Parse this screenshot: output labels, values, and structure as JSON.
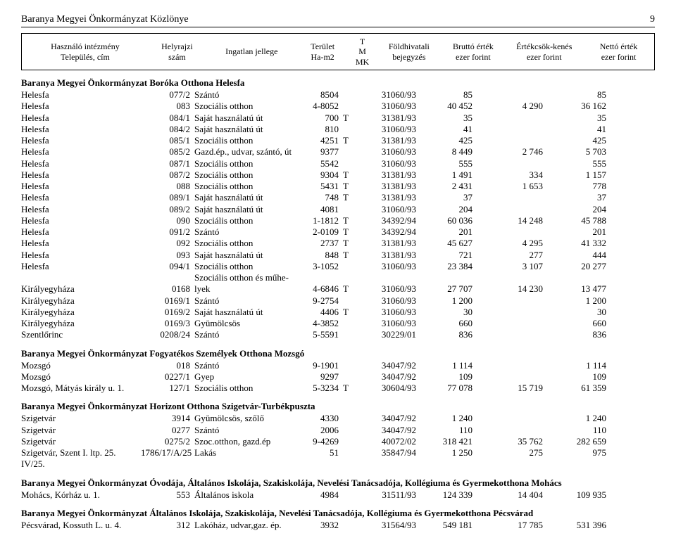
{
  "header": {
    "title": "Baranya Megyei Önkormányzat Közlönye",
    "page_number": "9"
  },
  "columns": {
    "c1a": "Használó intézmény",
    "c1b": "Település, cím",
    "c2a": "Helyrajzi",
    "c2b": "szám",
    "c3": "Ingatlan jellege",
    "c4a": "Terület",
    "c4b": "Ha-m2",
    "c5a": "T",
    "c5b": "M",
    "c5c": "MK",
    "c6a": "Földhivatali",
    "c6b": "bejegyzés",
    "c7a": "Bruttó érték",
    "c7b": "ezer forint",
    "c8a": "Értékcsök-kenés",
    "c8b": "ezer forint",
    "c9a": "Nettó érték",
    "c9b": "ezer forint"
  },
  "sections": [
    {
      "title": "Baranya Megyei Önkormányzat Boróka Otthona Helesfa",
      "rows": [
        {
          "c1": "Helesfa",
          "c2": "077/2",
          "c3": "Szántó",
          "c4": "8504",
          "c5": "",
          "c6": "31060/93",
          "c7": "85",
          "c8": "",
          "c9": "85"
        },
        {
          "c1": "Helesfa",
          "c2": "083",
          "c3": "Szociális otthon",
          "c4": "4-8052",
          "c5": "",
          "c6": "31060/93",
          "c7": "40 452",
          "c8": "4 290",
          "c9": "36 162"
        },
        {
          "c1": "Helesfa",
          "c2": "084/1",
          "c3": "Saját használatú út",
          "c4": "700",
          "c5": "T",
          "c6": "31381/93",
          "c7": "35",
          "c8": "",
          "c9": "35"
        },
        {
          "c1": "Helesfa",
          "c2": "084/2",
          "c3": "Saját használatú út",
          "c4": "810",
          "c5": "",
          "c6": "31060/93",
          "c7": "41",
          "c8": "",
          "c9": "41"
        },
        {
          "c1": "Helesfa",
          "c2": "085/1",
          "c3": "Szociális otthon",
          "c4": "4251",
          "c5": "T",
          "c6": "31381/93",
          "c7": "425",
          "c8": "",
          "c9": "425"
        },
        {
          "c1": "Helesfa",
          "c2": "085/2",
          "c3": "Gazd.ép., udvar, szántó, út",
          "c4": "9377",
          "c5": "",
          "c6": "31060/93",
          "c7": "8 449",
          "c8": "2 746",
          "c9": "5 703"
        },
        {
          "c1": "Helesfa",
          "c2": "087/1",
          "c3": "Szociális otthon",
          "c4": "5542",
          "c5": "",
          "c6": "31060/93",
          "c7": "555",
          "c8": "",
          "c9": "555"
        },
        {
          "c1": "Helesfa",
          "c2": "087/2",
          "c3": "Szociális otthon",
          "c4": "9304",
          "c5": "T",
          "c6": "31381/93",
          "c7": "1 491",
          "c8": "334",
          "c9": "1 157"
        },
        {
          "c1": "Helesfa",
          "c2": "088",
          "c3": "Szociális otthon",
          "c4": "5431",
          "c5": "T",
          "c6": "31381/93",
          "c7": "2 431",
          "c8": "1 653",
          "c9": "778"
        },
        {
          "c1": "Helesfa",
          "c2": "089/1",
          "c3": "Saját használatú út",
          "c4": "748",
          "c5": "T",
          "c6": "31381/93",
          "c7": "37",
          "c8": "",
          "c9": "37"
        },
        {
          "c1": "Helesfa",
          "c2": "089/2",
          "c3": "Saját használatú út",
          "c4": "4081",
          "c5": "",
          "c6": "31060/93",
          "c7": "204",
          "c8": "",
          "c9": "204"
        },
        {
          "c1": "Helesfa",
          "c2": "090",
          "c3": "Szociális otthon",
          "c4": "1-1812",
          "c5": "T",
          "c6": "34392/94",
          "c7": "60 036",
          "c8": "14 248",
          "c9": "45 788"
        },
        {
          "c1": "Helesfa",
          "c2": "091/2",
          "c3": "Szántó",
          "c4": "2-0109",
          "c5": "T",
          "c6": "34392/94",
          "c7": "201",
          "c8": "",
          "c9": "201"
        },
        {
          "c1": "Helesfa",
          "c2": "092",
          "c3": "Szociális otthon",
          "c4": "2737",
          "c5": "T",
          "c6": "31381/93",
          "c7": "45 627",
          "c8": "4 295",
          "c9": "41 332"
        },
        {
          "c1": "Helesfa",
          "c2": "093",
          "c3": "Saját használatú út",
          "c4": "848",
          "c5": "T",
          "c6": "31381/93",
          "c7": "721",
          "c8": "277",
          "c9": "444"
        },
        {
          "c1": "Helesfa",
          "c2": "094/1",
          "c3": "Szociális otthon",
          "c4": "3-1052",
          "c5": "",
          "c6": "31060/93",
          "c7": "23 384",
          "c8": "3 107",
          "c9": "20 277"
        },
        {
          "c1": "",
          "c2": "",
          "c3": "Szociális otthon és műhe-",
          "c4": "",
          "c5": "",
          "c6": "",
          "c7": "",
          "c8": "",
          "c9": ""
        },
        {
          "c1": "Királyegyháza",
          "c2": "0168",
          "c3": "lyek",
          "c4": "4-6846",
          "c5": "T",
          "c6": "31060/93",
          "c7": "27 707",
          "c8": "14 230",
          "c9": "13 477"
        },
        {
          "c1": "Királyegyháza",
          "c2": "0169/1",
          "c3": "Szántó",
          "c4": "9-2754",
          "c5": "",
          "c6": "31060/93",
          "c7": "1 200",
          "c8": "",
          "c9": "1 200"
        },
        {
          "c1": "Királyegyháza",
          "c2": "0169/2",
          "c3": "Saját használatú út",
          "c4": "4406",
          "c5": "T",
          "c6": "31060/93",
          "c7": "30",
          "c8": "",
          "c9": "30"
        },
        {
          "c1": "Királyegyháza",
          "c2": "0169/3",
          "c3": "Gyümölcsös",
          "c4": "4-3852",
          "c5": "",
          "c6": "31060/93",
          "c7": "660",
          "c8": "",
          "c9": "660"
        },
        {
          "c1": "Szentlőrinc",
          "c2": "0208/24",
          "c3": "Szántó",
          "c4": "5-5591",
          "c5": "",
          "c6": "30229/01",
          "c7": "836",
          "c8": "",
          "c9": "836"
        }
      ]
    },
    {
      "title": "Baranya Megyei Önkormányzat Fogyatékos Személyek Otthona Mozsgó",
      "rows": [
        {
          "c1": "Mozsgó",
          "c2": "018",
          "c3": "Szántó",
          "c4": "9-1901",
          "c5": "",
          "c6": "34047/92",
          "c7": "1 114",
          "c8": "",
          "c9": "1 114"
        },
        {
          "c1": "Mozsgó",
          "c2": "0227/1",
          "c3": "Gyep",
          "c4": "9297",
          "c5": "",
          "c6": "34047/92",
          "c7": "109",
          "c8": "",
          "c9": "109"
        },
        {
          "c1": "Mozsgó, Mátyás király u. 1.",
          "c2": "127/1",
          "c3": "Szociális otthon",
          "c4": "5-3234",
          "c5": "T",
          "c6": "30604/93",
          "c7": "77 078",
          "c8": "15 719",
          "c9": "61 359"
        }
      ]
    },
    {
      "title": "Baranya Megyei Önkormányzat Horizont Otthona Szigetvár-Turbékpuszta",
      "rows": [
        {
          "c1": "Szigetvár",
          "c2": "3914",
          "c3": "Gyümölcsös, szőlő",
          "c4": "4330",
          "c5": "",
          "c6": "34047/92",
          "c7": "1 240",
          "c8": "",
          "c9": "1 240"
        },
        {
          "c1": "Szigetvár",
          "c2": "0277",
          "c3": "Szántó",
          "c4": "2006",
          "c5": "",
          "c6": "34047/92",
          "c7": "110",
          "c8": "",
          "c9": "110"
        },
        {
          "c1": "Szigetvár",
          "c2": "0275/2",
          "c3": "Szoc.otthon, gazd.ép",
          "c4": "9-4269",
          "c5": "",
          "c6": "40072/02",
          "c7": "318 421",
          "c8": "35 762",
          "c9": "282 659"
        },
        {
          "c1": "Szigetvár, Szent I. ltp. 25. IV/25.",
          "c2": "1786/17/A/25",
          "c3": "Lakás",
          "c4": "51",
          "c5": "",
          "c6": "35847/94",
          "c7": "1 250",
          "c8": "275",
          "c9": "975"
        }
      ]
    },
    {
      "title": "Baranya Megyei Önkormányzat Óvodája, Általános Iskolája, Szakiskolája, Nevelési Tanácsadója, Kollégiuma és Gyermekotthona Mohács",
      "rows": [
        {
          "c1": "Mohács, Kórház u. 1.",
          "c2": "553",
          "c3": "Általános iskola",
          "c4": "4984",
          "c5": "",
          "c6": "31511/93",
          "c7": "124 339",
          "c8": "14 404",
          "c9": "109 935"
        }
      ]
    },
    {
      "title": "Baranya Megyei Önkormányzat Általános Iskolája, Szakiskolája, Nevelési Tanácsadója, Kollégiuma és Gyermekotthona Pécsvárad",
      "rows": [
        {
          "c1": "Pécsvárad, Kossuth L. u. 4.",
          "c2": "312",
          "c3": "Lakóház, udvar,gaz. ép.",
          "c4": "3932",
          "c5": "",
          "c6": "31564/93",
          "c7": "549 181",
          "c8": "17 785",
          "c9": "531 396"
        }
      ]
    }
  ]
}
